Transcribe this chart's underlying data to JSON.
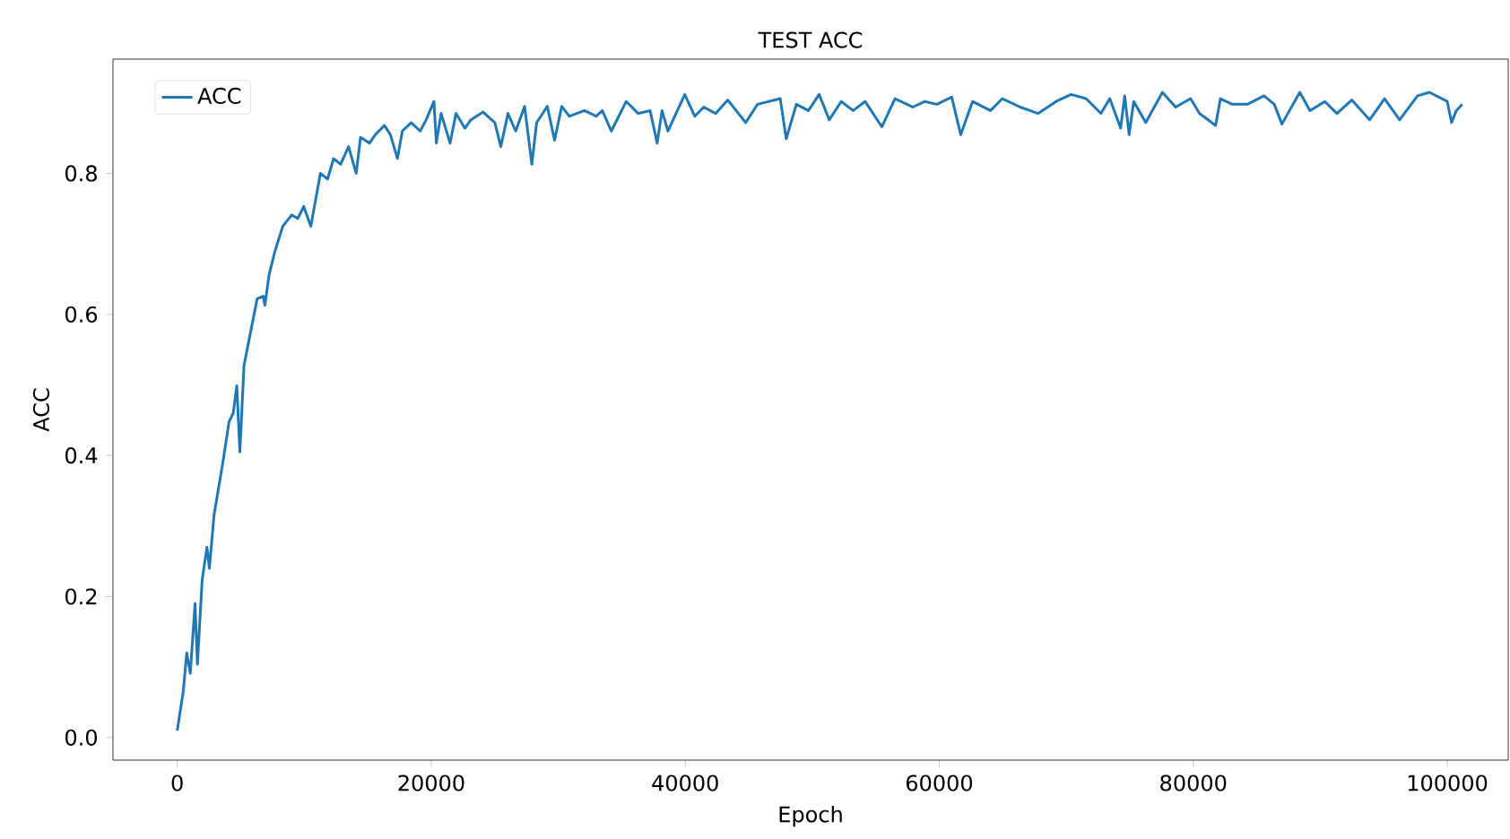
{
  "chart_data": {
    "type": "line",
    "title": "TEST ACC",
    "xlabel": "Epoch",
    "ylabel": "ACC",
    "xlim": [
      -5060,
      104800
    ],
    "ylim": [
      -0.032,
      0.962
    ],
    "xticks": [
      0,
      20000,
      40000,
      60000,
      80000,
      100000
    ],
    "yticks": [
      {
        "value": 0,
        "label": "0.0"
      },
      {
        "value": 0.2,
        "label": "0.2"
      },
      {
        "value": 0.4,
        "label": "0.4"
      },
      {
        "value": 0.6,
        "label": "0.6"
      },
      {
        "value": 0.8,
        "label": "0.8"
      }
    ],
    "grid": false,
    "legend": "top left",
    "marker": "none",
    "line_style": "solid",
    "series": [
      {
        "name": "ACC",
        "color": "#1f77b4",
        "x": [
          0,
          470,
          750,
          1030,
          1400,
          1590,
          1960,
          2340,
          2530,
          2900,
          3610,
          4080,
          4410,
          4690,
          4930,
          5260,
          5730,
          6290,
          6760,
          6900,
          7230,
          7700,
          8310,
          9010,
          9490,
          9960,
          10520,
          11270,
          11840,
          12310,
          12870,
          13490,
          14090,
          14430,
          15140,
          15600,
          16310,
          16780,
          17340,
          17720,
          18420,
          19130,
          19600,
          20210,
          20400,
          20780,
          21480,
          21950,
          22650,
          23120,
          24070,
          25010,
          25480,
          26040,
          26650,
          27350,
          27920,
          28300,
          29140,
          29710,
          30270,
          30880,
          32060,
          32990,
          33470,
          34180,
          35350,
          36300,
          37230,
          37790,
          38170,
          38640,
          39960,
          40750,
          41460,
          42400,
          43350,
          44760,
          45690,
          47480,
          47950,
          48750,
          49700,
          50540,
          51340,
          52280,
          53220,
          54160,
          55480,
          56510,
          57920,
          58870,
          59800,
          60980,
          61690,
          62620,
          64030,
          64970,
          66380,
          67790,
          69200,
          70380,
          71560,
          72730,
          73430,
          74280,
          74600,
          74950,
          75310,
          76260,
          77570,
          78610,
          79790,
          80490,
          81760,
          82140,
          83070,
          84260,
          85570,
          86380,
          86980,
          88390,
          89190,
          90360,
          91310,
          92480,
          93890,
          95060,
          96250,
          97660,
          98590,
          100000,
          100340,
          100710,
          101180
        ],
        "values": [
          0.01,
          0.065,
          0.12,
          0.091,
          0.19,
          0.104,
          0.223,
          0.27,
          0.24,
          0.316,
          0.392,
          0.448,
          0.46,
          0.499,
          0.405,
          0.528,
          0.571,
          0.622,
          0.626,
          0.613,
          0.656,
          0.69,
          0.725,
          0.741,
          0.736,
          0.753,
          0.725,
          0.8,
          0.792,
          0.821,
          0.813,
          0.838,
          0.8,
          0.851,
          0.843,
          0.855,
          0.868,
          0.855,
          0.821,
          0.86,
          0.872,
          0.86,
          0.876,
          0.902,
          0.843,
          0.885,
          0.843,
          0.885,
          0.864,
          0.876,
          0.887,
          0.872,
          0.838,
          0.885,
          0.86,
          0.895,
          0.813,
          0.872,
          0.895,
          0.847,
          0.895,
          0.881,
          0.889,
          0.881,
          0.889,
          0.86,
          0.902,
          0.885,
          0.889,
          0.843,
          0.889,
          0.86,
          0.912,
          0.881,
          0.894,
          0.885,
          0.904,
          0.872,
          0.898,
          0.906,
          0.849,
          0.898,
          0.889,
          0.912,
          0.876,
          0.902,
          0.889,
          0.902,
          0.866,
          0.906,
          0.894,
          0.902,
          0.898,
          0.908,
          0.855,
          0.902,
          0.889,
          0.906,
          0.894,
          0.885,
          0.902,
          0.912,
          0.906,
          0.885,
          0.906,
          0.864,
          0.91,
          0.855,
          0.902,
          0.872,
          0.915,
          0.894,
          0.906,
          0.885,
          0.868,
          0.906,
          0.898,
          0.898,
          0.91,
          0.898,
          0.87,
          0.915,
          0.889,
          0.902,
          0.885,
          0.904,
          0.876,
          0.906,
          0.876,
          0.91,
          0.915,
          0.902,
          0.872,
          0.889,
          0.898
        ]
      }
    ]
  }
}
